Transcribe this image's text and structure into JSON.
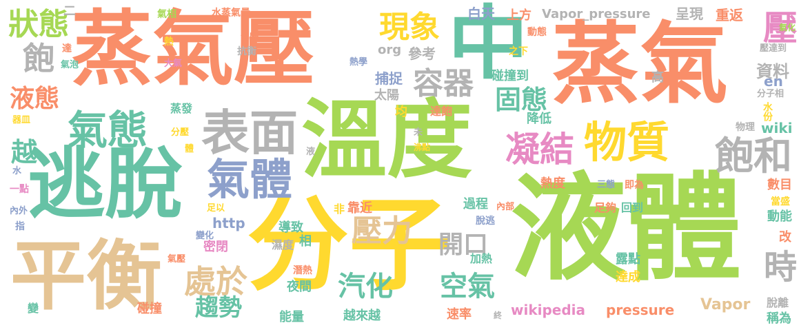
{
  "palette": {
    "orange": "#F98E69",
    "green": "#A6D854",
    "yellow": "#FFD92F",
    "teal": "#66C2A5",
    "gray": "#B3B3B3",
    "blue": "#8DA0CB",
    "pink": "#E78AC3",
    "tan": "#E5C494"
  },
  "words": [
    {
      "text": "蒸氣壓",
      "color": "orange"
    },
    {
      "text": "中",
      "color": "teal"
    },
    {
      "text": "蒸氣",
      "color": "orange"
    },
    {
      "text": "逃脫",
      "color": "teal"
    },
    {
      "text": "溫度",
      "color": "green"
    },
    {
      "text": "液體",
      "color": "green"
    },
    {
      "text": "分子",
      "color": "yellow"
    },
    {
      "text": "平衡",
      "color": "tan"
    },
    {
      "text": "表面",
      "color": "gray"
    },
    {
      "text": "氣態",
      "color": "teal"
    },
    {
      "text": "物質",
      "color": "yellow"
    },
    {
      "text": "凝結",
      "color": "pink"
    },
    {
      "text": "氣體",
      "color": "blue"
    },
    {
      "text": "飽和",
      "color": "gray"
    },
    {
      "text": "容器",
      "color": "gray"
    },
    {
      "text": "現象",
      "color": "yellow"
    },
    {
      "text": "狀態",
      "color": "green"
    },
    {
      "text": "飽",
      "color": "gray"
    },
    {
      "text": "液態",
      "color": "orange"
    },
    {
      "text": "越",
      "color": "teal"
    },
    {
      "text": "壓力",
      "color": "tan"
    },
    {
      "text": "固態",
      "color": "teal"
    },
    {
      "text": "壓",
      "color": "pink"
    },
    {
      "text": "處於",
      "color": "tan"
    },
    {
      "text": "汽化",
      "color": "teal"
    },
    {
      "text": "空氣",
      "color": "teal"
    },
    {
      "text": "趨勢",
      "color": "teal"
    },
    {
      "text": "開口",
      "color": "gray"
    },
    {
      "text": "時",
      "color": "gray"
    },
    {
      "text": "資料",
      "color": "gray"
    },
    {
      "text": "wikipedia",
      "color": "pink"
    },
    {
      "text": "pressure",
      "color": "orange"
    },
    {
      "text": "Vapor_pressure",
      "color": "gray"
    },
    {
      "text": "Vapor",
      "color": "tan"
    },
    {
      "text": "http",
      "color": "blue"
    },
    {
      "text": "wiki",
      "color": "teal"
    },
    {
      "text": "en",
      "color": "blue"
    },
    {
      "text": "org",
      "color": "gray"
    },
    {
      "text": "參考",
      "color": "gray"
    },
    {
      "text": "白天",
      "color": "blue"
    },
    {
      "text": "上方",
      "color": "orange"
    },
    {
      "text": "呈現",
      "color": "gray"
    },
    {
      "text": "重返",
      "color": "orange"
    },
    {
      "text": "捕捉",
      "color": "blue"
    },
    {
      "text": "碰撞到",
      "color": "teal"
    },
    {
      "text": "太陽",
      "color": "gray"
    },
    {
      "text": "均",
      "color": "yellow"
    },
    {
      "text": "達飽",
      "color": "orange"
    },
    {
      "text": "降低",
      "color": "teal"
    },
    {
      "text": "熱度",
      "color": "orange"
    },
    {
      "text": "過程",
      "color": "teal"
    },
    {
      "text": "導致",
      "color": "teal"
    },
    {
      "text": "相",
      "color": "teal"
    },
    {
      "text": "濕度",
      "color": "gray"
    },
    {
      "text": "密閉",
      "color": "pink"
    },
    {
      "text": "碰撞",
      "color": "orange"
    },
    {
      "text": "能量",
      "color": "teal"
    },
    {
      "text": "越來越",
      "color": "teal"
    },
    {
      "text": "速率",
      "color": "orange"
    },
    {
      "text": "夜間",
      "color": "teal"
    },
    {
      "text": "潛熱",
      "color": "orange"
    },
    {
      "text": "加熱",
      "color": "teal"
    },
    {
      "text": "露點",
      "color": "teal"
    },
    {
      "text": "達成",
      "color": "yellow"
    },
    {
      "text": "稱為",
      "color": "teal"
    },
    {
      "text": "脫離",
      "color": "gray"
    },
    {
      "text": "數目",
      "color": "orange"
    },
    {
      "text": "當盛",
      "color": "yellow"
    },
    {
      "text": "動能",
      "color": "teal"
    },
    {
      "text": "改",
      "color": "orange"
    },
    {
      "text": "足夠",
      "color": "orange"
    },
    {
      "text": "回到",
      "color": "teal"
    },
    {
      "text": "脫逃",
      "color": "blue"
    },
    {
      "text": "內部",
      "color": "orange"
    },
    {
      "text": "非",
      "color": "yellow"
    },
    {
      "text": "靠近",
      "color": "orange"
    },
    {
      "text": "三態",
      "color": "blue"
    },
    {
      "text": "即為",
      "color": "orange"
    },
    {
      "text": "物理",
      "color": "gray"
    },
    {
      "text": "分子相",
      "color": "gray"
    },
    {
      "text": "水份",
      "color": "yellow"
    },
    {
      "text": "高",
      "color": "gray"
    },
    {
      "text": "氣化",
      "color": "green"
    },
    {
      "text": "壓達到",
      "color": "gray"
    },
    {
      "text": "動態",
      "color": "orange"
    },
    {
      "text": "之下",
      "color": "yellow"
    },
    {
      "text": "熱學",
      "color": "blue"
    },
    {
      "text": "抗衡",
      "color": "gray"
    },
    {
      "text": "沸騰",
      "color": "orange"
    },
    {
      "text": "氣相",
      "color": "green"
    },
    {
      "text": "水蒸氣量",
      "color": "orange"
    },
    {
      "text": "二",
      "color": "gray"
    },
    {
      "text": "熱",
      "color": "yellow"
    },
    {
      "text": "大氣",
      "color": "pink"
    },
    {
      "text": "達",
      "color": "orange"
    },
    {
      "text": "氣泡",
      "color": "teal"
    },
    {
      "text": "蒸發",
      "color": "teal"
    },
    {
      "text": "器皿",
      "color": "yellow"
    },
    {
      "text": "分壓",
      "color": "yellow"
    },
    {
      "text": "體",
      "color": "yellow"
    },
    {
      "text": "水",
      "color": "blue"
    },
    {
      "text": "一點",
      "color": "pink"
    },
    {
      "text": "足以",
      "color": "yellow"
    },
    {
      "text": "內外",
      "color": "blue"
    },
    {
      "text": "指",
      "color": "blue"
    },
    {
      "text": "變化",
      "color": "blue"
    },
    {
      "text": "氣壓",
      "color": "orange"
    },
    {
      "text": "變",
      "color": "teal"
    },
    {
      "text": "液",
      "color": "gray"
    },
    {
      "text": "未",
      "color": "gray"
    },
    {
      "text": "沸點",
      "color": "yellow"
    },
    {
      "text": "終",
      "color": "gray"
    }
  ]
}
